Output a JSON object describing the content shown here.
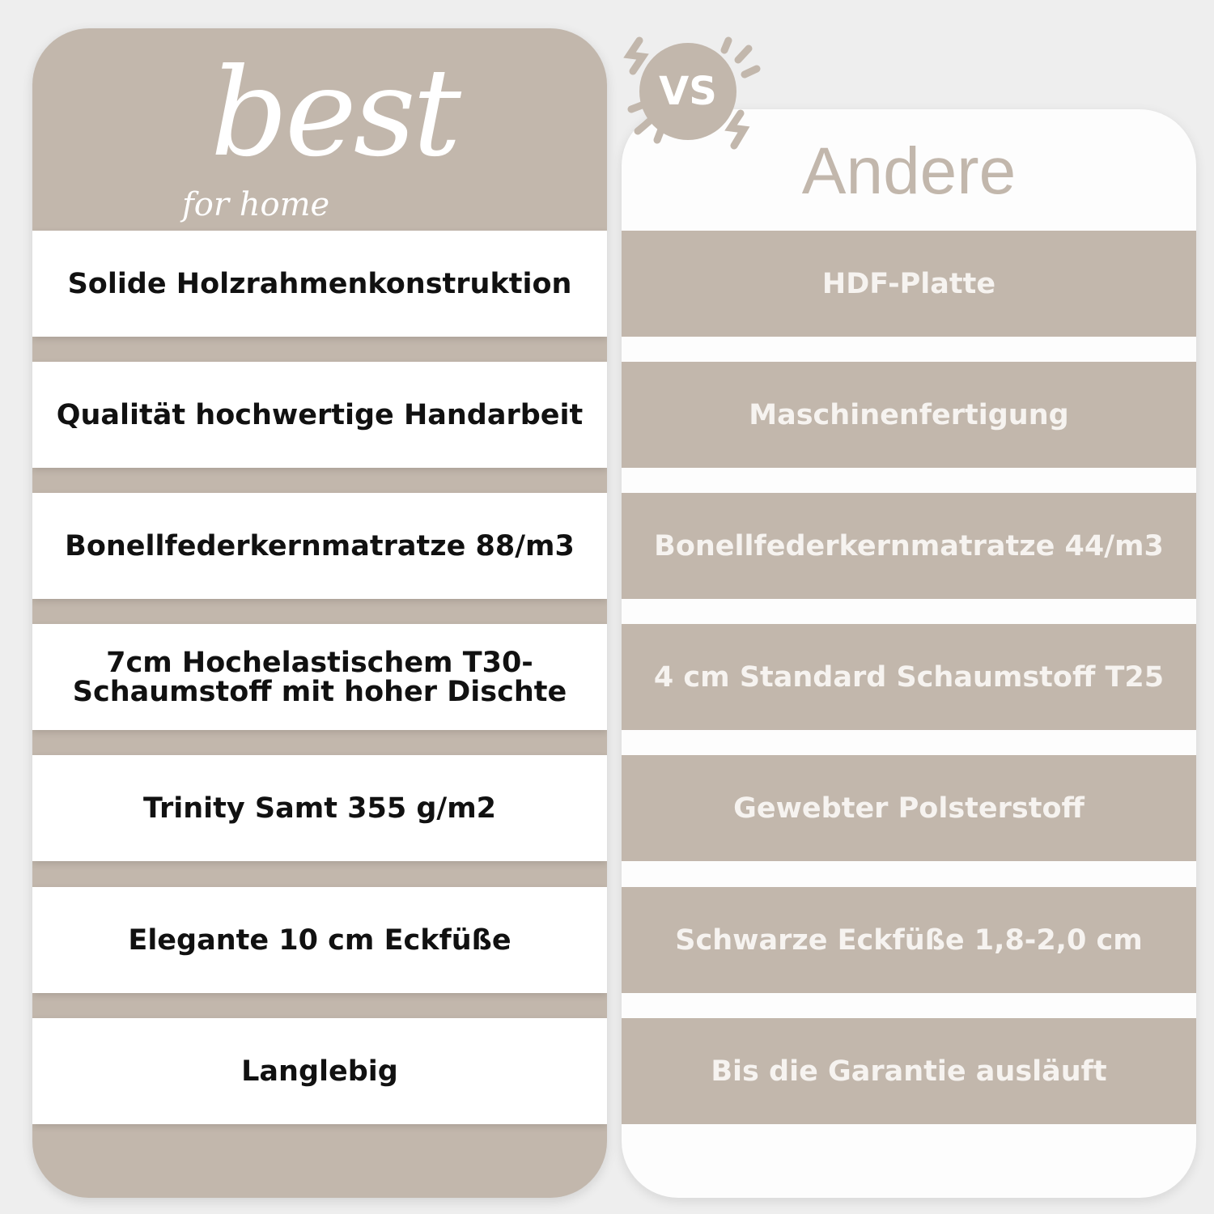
{
  "brand": {
    "logo_main": "best",
    "logo_sub": "for home"
  },
  "vs_label": "VS",
  "competitor_title": "Andere",
  "colors": {
    "accent": "#c2b7ac",
    "background": "#eeeeee"
  },
  "rows": [
    {
      "best": "Solide Holzrahmenkonstruktion",
      "other": "HDF-Platte"
    },
    {
      "best": "Qualität hochwertige Handarbeit",
      "other": "Maschinenfertigung"
    },
    {
      "best": "Bonellfederkernmatratze 88/m3",
      "other": "Bonellfederkernmatratze 44/m3"
    },
    {
      "best": "7cm Hochelastischem T30-\nSchaumstoff mit hoher Dischte",
      "other": "4 cm Standard Schaumstoff T25"
    },
    {
      "best": "Trinity Samt 355 g/m2",
      "other": "Gewebter Polsterstoff"
    },
    {
      "best": "Elegante 10 cm Eckfüße",
      "other": "Schwarze Eckfüße 1,8-2,0 cm"
    },
    {
      "best": "Langlebig",
      "other": "Bis die Garantie ausläuft"
    }
  ]
}
